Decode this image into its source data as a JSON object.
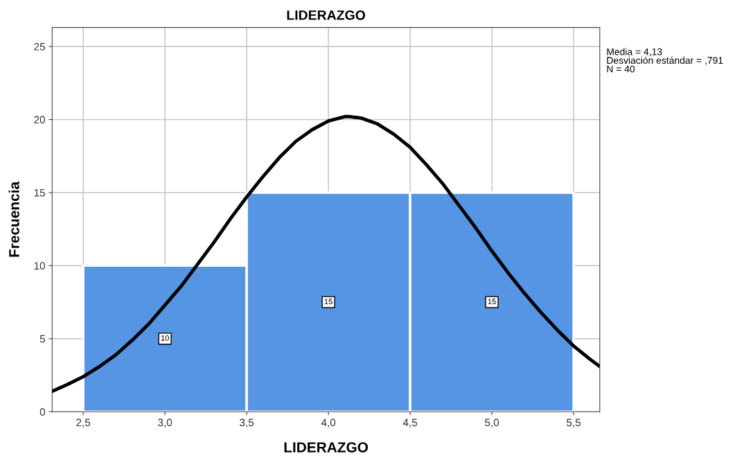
{
  "chart_data": {
    "type": "histogram",
    "title": "LIDERAZGO",
    "xlabel": "LIDERAZGO",
    "ylabel": "Frecuencia",
    "series": [
      {
        "bins": [
          2.5,
          3.5,
          4.5,
          5.5
        ],
        "values": [
          10,
          15,
          15
        ],
        "value_labels": [
          "10",
          "15",
          "15"
        ],
        "color": "#5595e4"
      },
      {
        "type": "line",
        "color": "#000000",
        "x": [
          2.31,
          2.4,
          2.5,
          2.6,
          2.7,
          2.8,
          2.9,
          3.0,
          3.1,
          3.2,
          3.3,
          3.4,
          3.5,
          3.6,
          3.7,
          3.8,
          3.9,
          4.0,
          4.1,
          4.13,
          4.2,
          4.3,
          4.4,
          4.5,
          4.6,
          4.7,
          4.8,
          4.9,
          5.0,
          5.1,
          5.2,
          5.3,
          5.4,
          5.5,
          5.6,
          5.66
        ],
        "values": [
          1.4,
          1.85,
          2.4,
          3.1,
          3.9,
          4.9,
          6.0,
          7.3,
          8.6,
          10.1,
          11.6,
          13.2,
          14.7,
          16.1,
          17.4,
          18.5,
          19.3,
          19.9,
          20.2,
          20.2,
          20.1,
          19.7,
          19.0,
          18.1,
          16.9,
          15.6,
          14.1,
          12.6,
          11.0,
          9.5,
          8.1,
          6.8,
          5.6,
          4.5,
          3.6,
          3.1
        ]
      }
    ],
    "annotations": [
      "Media = 4,13",
      "Desviación estándar = ,791",
      "N = 40"
    ],
    "grid": true,
    "line_style": "solid",
    "xlim": [
      2.31,
      5.66
    ],
    "ylim": [
      0,
      26.3
    ],
    "xticks": [
      {
        "value": 2.5,
        "label": "2,5"
      },
      {
        "value": 3.0,
        "label": "3,0"
      },
      {
        "value": 3.5,
        "label": "3,5"
      },
      {
        "value": 4.0,
        "label": "4,0"
      },
      {
        "value": 4.5,
        "label": "4,5"
      },
      {
        "value": 5.0,
        "label": "5,0"
      },
      {
        "value": 5.5,
        "label": "5,5"
      }
    ],
    "yticks": [
      0,
      5,
      10,
      15,
      20,
      25
    ]
  }
}
